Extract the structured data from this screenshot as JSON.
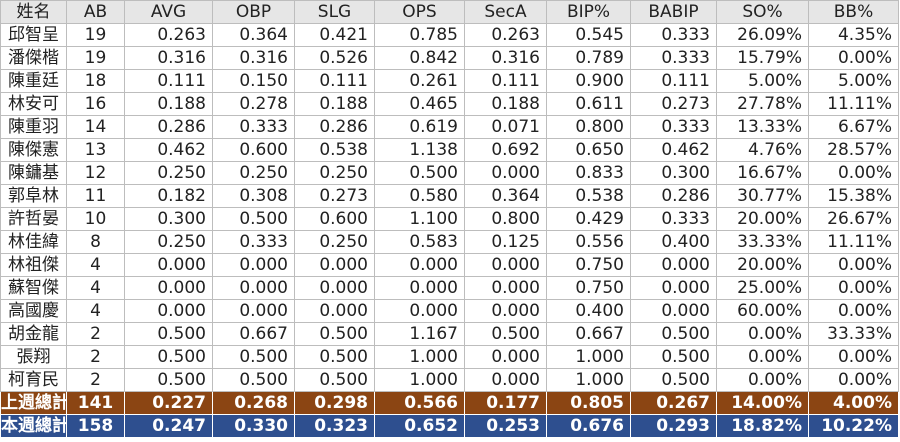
{
  "columns": [
    "姓名",
    "AB",
    "AVG",
    "OBP",
    "SLG",
    "OPS",
    "SecA",
    "BIP%",
    "BABIP",
    "SO%",
    "BB%"
  ],
  "rows": [
    [
      "邱智呈",
      "19",
      "0.263",
      "0.364",
      "0.421",
      "0.785",
      "0.263",
      "0.545",
      "0.333",
      "26.09%",
      "4.35%"
    ],
    [
      "潘傑楷",
      "19",
      "0.316",
      "0.316",
      "0.526",
      "0.842",
      "0.316",
      "0.789",
      "0.333",
      "15.79%",
      "0.00%"
    ],
    [
      "陳重廷",
      "18",
      "0.111",
      "0.150",
      "0.111",
      "0.261",
      "0.111",
      "0.900",
      "0.111",
      "5.00%",
      "5.00%"
    ],
    [
      "林安可",
      "16",
      "0.188",
      "0.278",
      "0.188",
      "0.465",
      "0.188",
      "0.611",
      "0.273",
      "27.78%",
      "11.11%"
    ],
    [
      "陳重羽",
      "14",
      "0.286",
      "0.333",
      "0.286",
      "0.619",
      "0.071",
      "0.800",
      "0.333",
      "13.33%",
      "6.67%"
    ],
    [
      "陳傑憲",
      "13",
      "0.462",
      "0.600",
      "0.538",
      "1.138",
      "0.692",
      "0.650",
      "0.462",
      "4.76%",
      "28.57%"
    ],
    [
      "陳鏞基",
      "12",
      "0.250",
      "0.250",
      "0.250",
      "0.500",
      "0.000",
      "0.833",
      "0.300",
      "16.67%",
      "0.00%"
    ],
    [
      "郭阜林",
      "11",
      "0.182",
      "0.308",
      "0.273",
      "0.580",
      "0.364",
      "0.538",
      "0.286",
      "30.77%",
      "15.38%"
    ],
    [
      "許哲晏",
      "10",
      "0.300",
      "0.500",
      "0.600",
      "1.100",
      "0.800",
      "0.429",
      "0.333",
      "20.00%",
      "26.67%"
    ],
    [
      "林佳緯",
      "8",
      "0.250",
      "0.333",
      "0.250",
      "0.583",
      "0.125",
      "0.556",
      "0.400",
      "33.33%",
      "11.11%"
    ],
    [
      "林祖傑",
      "4",
      "0.000",
      "0.000",
      "0.000",
      "0.000",
      "0.000",
      "0.750",
      "0.000",
      "20.00%",
      "0.00%"
    ],
    [
      "蘇智傑",
      "4",
      "0.000",
      "0.000",
      "0.000",
      "0.000",
      "0.000",
      "0.750",
      "0.000",
      "25.00%",
      "0.00%"
    ],
    [
      "高國慶",
      "4",
      "0.000",
      "0.000",
      "0.000",
      "0.000",
      "0.000",
      "0.400",
      "0.000",
      "60.00%",
      "0.00%"
    ],
    [
      "胡金龍",
      "2",
      "0.500",
      "0.667",
      "0.500",
      "1.167",
      "0.500",
      "0.667",
      "0.500",
      "0.00%",
      "33.33%"
    ],
    [
      "張翔",
      "2",
      "0.500",
      "0.500",
      "0.500",
      "1.000",
      "0.000",
      "1.000",
      "0.500",
      "0.00%",
      "0.00%"
    ],
    [
      "柯育民",
      "2",
      "0.500",
      "0.500",
      "0.500",
      "1.000",
      "0.000",
      "1.000",
      "0.500",
      "0.00%",
      "0.00%"
    ]
  ],
  "totals": [
    {
      "style": "last-week",
      "color": "#8b4513",
      "cells": [
        "上週總計",
        "141",
        "0.227",
        "0.268",
        "0.298",
        "0.566",
        "0.177",
        "0.805",
        "0.267",
        "14.00%",
        "4.00%"
      ]
    },
    {
      "style": "this-week",
      "color": "#2e4f8f",
      "cells": [
        "本週總計",
        "158",
        "0.247",
        "0.330",
        "0.323",
        "0.652",
        "0.253",
        "0.676",
        "0.293",
        "18.82%",
        "10.22%"
      ]
    }
  ]
}
